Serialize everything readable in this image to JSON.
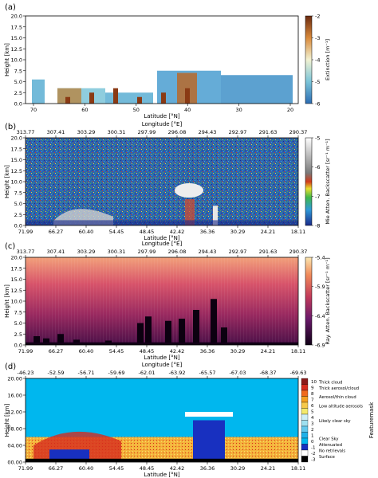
{
  "chart_data": [
    {
      "panel": "(a)",
      "type": "heatmap",
      "xlabel": "Latitude [°N]",
      "ylabel": "Height [km]",
      "x_ticks": [
        "70",
        "60",
        "50",
        "40",
        "30",
        "20"
      ],
      "y_ticks": [
        "0.0",
        "2.5",
        "5.0",
        "7.5",
        "10.0",
        "12.5",
        "15.0",
        "17.5",
        "20.0"
      ],
      "ylim": [
        0,
        20
      ],
      "colorbar": {
        "label": "Extinction [m⁻¹]",
        "ticks": [
          "-2",
          "-3",
          "-4",
          "-5",
          "-6"
        ],
        "range": [
          -6,
          -2
        ]
      }
    },
    {
      "panel": "(b)",
      "type": "heatmap",
      "top_axis_label": "Longitude [°E]",
      "top_ticks": [
        "313.77",
        "307.41",
        "303.29",
        "300.31",
        "297.99",
        "296.08",
        "294.43",
        "292.97",
        "291.63",
        "290.37"
      ],
      "xlabel": "Latitude [°N]",
      "x_ticks": [
        "71.99",
        "66.27",
        "60.40",
        "54.45",
        "48.45",
        "42.42",
        "36.36",
        "30.29",
        "24.21",
        "18.11"
      ],
      "ylabel": "Height [km]",
      "y_ticks": [
        "0.0",
        "2.5",
        "5.0",
        "7.5",
        "10.0",
        "12.5",
        "15.0",
        "17.5",
        "20.0"
      ],
      "ylim": [
        0,
        20
      ],
      "colorbar": {
        "label": "Mie Atten. Backscatter [sr⁻¹ m⁻¹]",
        "ticks": [
          "-5",
          "-6",
          "-7",
          "-8"
        ],
        "range": [
          -8,
          -5
        ]
      }
    },
    {
      "panel": "(c)",
      "type": "heatmap",
      "top_axis_label": "Longitude [°E]",
      "top_ticks": [
        "313.77",
        "307.41",
        "303.29",
        "300.31",
        "297.99",
        "296.08",
        "294.43",
        "292.97",
        "291.63",
        "290.37"
      ],
      "xlabel": "Latitude [°N]",
      "x_ticks": [
        "71.99",
        "66.27",
        "60.40",
        "54.45",
        "48.45",
        "42.42",
        "36.36",
        "30.29",
        "24.21",
        "18.11"
      ],
      "ylabel": "Height [km]",
      "y_ticks": [
        "0.0",
        "2.5",
        "5.0",
        "7.5",
        "10.0",
        "12.5",
        "15.0",
        "17.5",
        "20.0"
      ],
      "ylim": [
        0,
        20
      ],
      "colorbar": {
        "label": "Ray. Atten. Backscatter [sr⁻¹ m⁻¹]",
        "ticks": [
          "-5.4",
          "-5.9",
          "-6.4",
          "-6.9"
        ],
        "range": [
          -6.9,
          -5.4
        ]
      }
    },
    {
      "panel": "(d)",
      "type": "heatmap",
      "top_axis_label": "Longitude [°E]",
      "top_ticks": [
        "-46.23",
        "-52.59",
        "-56.71",
        "-59.69",
        "-62.01",
        "-63.92",
        "-65.57",
        "-67.03",
        "-68.37",
        "-69.63"
      ],
      "xlabel": "Latitude [°N]",
      "x_ticks": [
        "71.99",
        "66.27",
        "60.40",
        "54.45",
        "48.45",
        "42.42",
        "36.36",
        "30.29",
        "24.21",
        "18.11"
      ],
      "ylabel": "Height [km]",
      "y_ticks": [
        "00.00",
        "04.00",
        "08.00",
        "12.00",
        "16.00",
        "20.00"
      ],
      "ylim": [
        0,
        20
      ],
      "colorbar": {
        "label": "Featuremask",
        "ticks": [
          "10",
          "9",
          "8",
          "7",
          "6",
          "5",
          "4",
          "3",
          "2",
          "1",
          "0",
          "-1",
          "-2",
          "-3"
        ],
        "categories": [
          "Thick cloud",
          "Thick aerosol/cloud",
          "Aerosol/thin cloud",
          "Low altitude aerosols",
          "Likely clear sky",
          "Clear Sky",
          "Attenuated",
          "No retrievals",
          "Surface"
        ],
        "colors": [
          "#8b1a1a",
          "#d62b1e",
          "#f06a1c",
          "#f4a020",
          "#f6c94a",
          "#f3e96b",
          "#cdeef6",
          "#9ee0f0",
          "#62c8ec",
          "#1fb0e8",
          "#00b7ee",
          "#1830c0",
          "#ffffff",
          "#000000"
        ]
      }
    }
  ]
}
